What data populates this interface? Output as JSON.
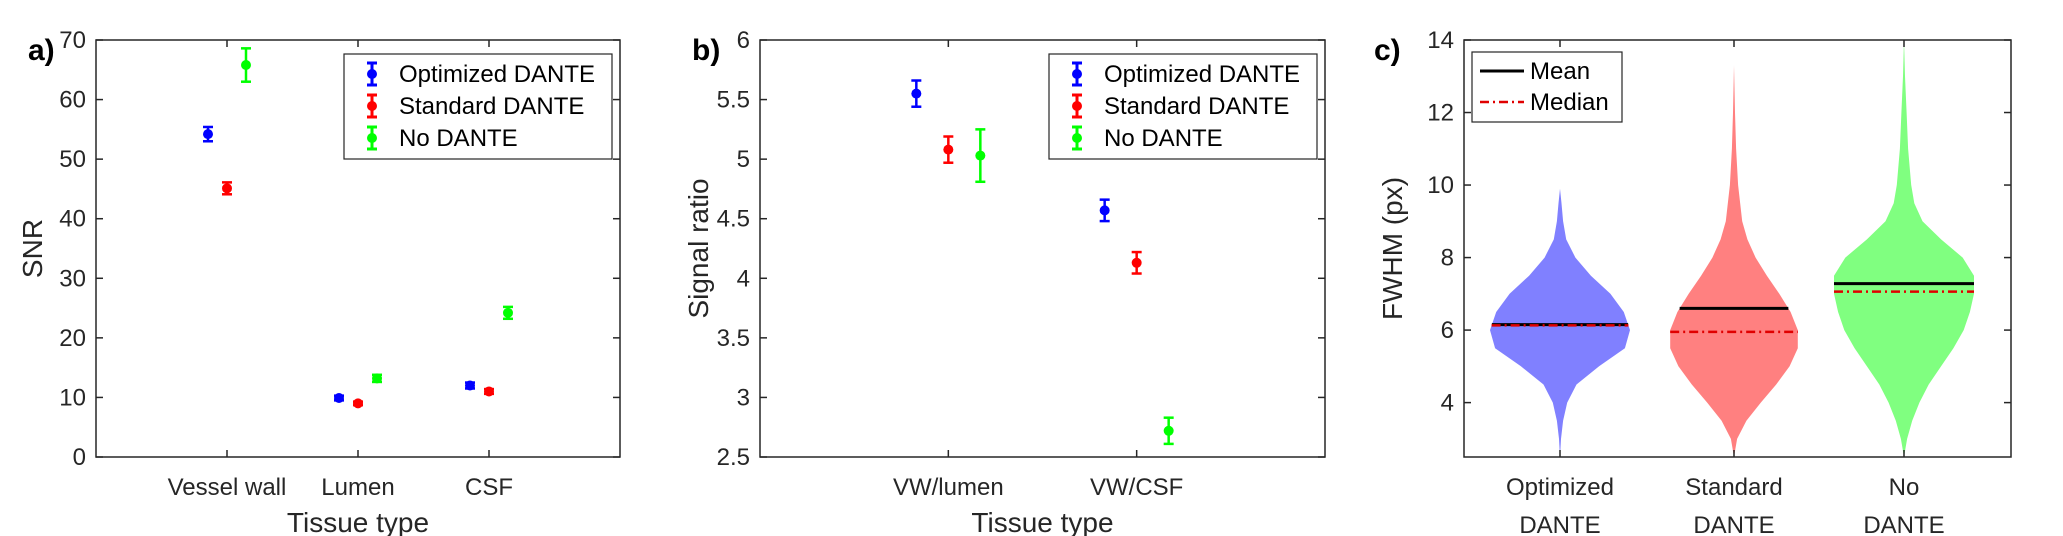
{
  "chart_data": [
    {
      "panel": "a)",
      "type": "scatter",
      "categories": [
        "Vessel wall",
        "Lumen",
        "CSF"
      ],
      "xlabel": "Tissue type",
      "ylabel": "SNR",
      "ylim": [
        0,
        70
      ],
      "yticks": [
        "0",
        "10",
        "20",
        "30",
        "40",
        "50",
        "60",
        "70"
      ],
      "legend": "top-right",
      "series": [
        {
          "name": "Optimized DANTE",
          "color": "#0000ff",
          "values": [
            54.2,
            9.9,
            12.0
          ],
          "errors": [
            1.2,
            0.4,
            0.5
          ]
        },
        {
          "name": "Standard DANTE",
          "color": "#ff0000",
          "values": [
            45.1,
            9.0,
            11.0
          ],
          "errors": [
            1.0,
            0.3,
            0.4
          ]
        },
        {
          "name": "No DANTE",
          "color": "#00ff00",
          "values": [
            65.8,
            13.2,
            24.2
          ],
          "errors": [
            2.8,
            0.6,
            1.0
          ]
        }
      ]
    },
    {
      "panel": "b)",
      "type": "scatter",
      "categories": [
        "VW/lumen",
        "VW/CSF"
      ],
      "xlabel": "Tissue type",
      "ylabel": "Signal ratio",
      "ylim": [
        2.5,
        6
      ],
      "yticks": [
        "2.5",
        "3",
        "3.5",
        "4",
        "4.5",
        "5",
        "5.5",
        "6"
      ],
      "legend": "top-right",
      "series": [
        {
          "name": "Optimized DANTE",
          "color": "#0000ff",
          "values": [
            5.55,
            4.57
          ],
          "errors": [
            0.11,
            0.09
          ]
        },
        {
          "name": "Standard DANTE",
          "color": "#ff0000",
          "values": [
            5.08,
            4.13
          ],
          "errors": [
            0.11,
            0.09
          ]
        },
        {
          "name": "No DANTE",
          "color": "#00ff00",
          "values": [
            5.03,
            2.72
          ],
          "errors": [
            0.22,
            0.11
          ]
        }
      ]
    },
    {
      "panel": "c)",
      "type": "violin",
      "categories": [
        "Optimized\nDANTE",
        "Standard\nDANTE",
        "No\nDANTE"
      ],
      "category_lines": [
        [
          "Optimized",
          "DANTE"
        ],
        [
          "Standard",
          "DANTE"
        ],
        [
          "No",
          "DANTE"
        ]
      ],
      "xlabel": "",
      "ylabel": "FWHM (px)",
      "ylim": [
        2.5,
        14
      ],
      "yticks": [
        "4",
        "6",
        "8",
        "10",
        "12",
        "14"
      ],
      "legend": "top-left",
      "legend_entries": [
        "Mean",
        "Median"
      ],
      "series": [
        {
          "category": "Optimized DANTE",
          "color": "#8080ff",
          "min": 2.5,
          "max": 9.9,
          "mean": 6.15,
          "median": 6.13,
          "profile": [
            [
              2.5,
              0
            ],
            [
              3.0,
              1
            ],
            [
              3.5,
              3
            ],
            [
              4.0,
              7
            ],
            [
              4.5,
              16
            ],
            [
              5.0,
              38
            ],
            [
              5.5,
              63
            ],
            [
              6.0,
              68
            ],
            [
              6.5,
              62
            ],
            [
              7.0,
              49
            ],
            [
              7.5,
              30
            ],
            [
              8.0,
              15
            ],
            [
              8.5,
              6
            ],
            [
              9.0,
              3
            ],
            [
              9.5,
              1.5
            ],
            [
              9.9,
              0
            ]
          ]
        },
        {
          "category": "Standard DANTE",
          "color": "#ff8080",
          "min": 2.5,
          "max": 13.3,
          "mean": 6.6,
          "median": 5.95,
          "profile": [
            [
              2.5,
              0
            ],
            [
              3.0,
              3
            ],
            [
              3.5,
              12
            ],
            [
              4.0,
              26
            ],
            [
              4.5,
              41
            ],
            [
              5.0,
              54
            ],
            [
              5.5,
              62
            ],
            [
              6.0,
              62
            ],
            [
              6.5,
              55
            ],
            [
              7.0,
              44
            ],
            [
              7.5,
              32
            ],
            [
              8.0,
              21
            ],
            [
              8.5,
              13
            ],
            [
              9.0,
              8
            ],
            [
              10.0,
              4
            ],
            [
              11.0,
              2
            ],
            [
              12.0,
              1
            ],
            [
              13.3,
              0
            ]
          ]
        },
        {
          "category": "No DANTE",
          "color": "#80ff80",
          "min": 2.5,
          "max": 14.0,
          "mean": 7.28,
          "median": 7.06,
          "profile": [
            [
              2.5,
              0
            ],
            [
              3.0,
              3
            ],
            [
              3.5,
              8
            ],
            [
              4.0,
              15
            ],
            [
              4.5,
              24
            ],
            [
              5.0,
              36
            ],
            [
              5.5,
              48
            ],
            [
              6.0,
              58
            ],
            [
              6.5,
              64
            ],
            [
              7.0,
              68
            ],
            [
              7.5,
              68
            ],
            [
              8.0,
              57
            ],
            [
              8.5,
              36
            ],
            [
              9.0,
              18
            ],
            [
              9.5,
              10
            ],
            [
              10.0,
              7
            ],
            [
              11.0,
              4
            ],
            [
              12.0,
              2.5
            ],
            [
              13.0,
              1
            ],
            [
              14.0,
              0
            ]
          ]
        }
      ]
    }
  ]
}
